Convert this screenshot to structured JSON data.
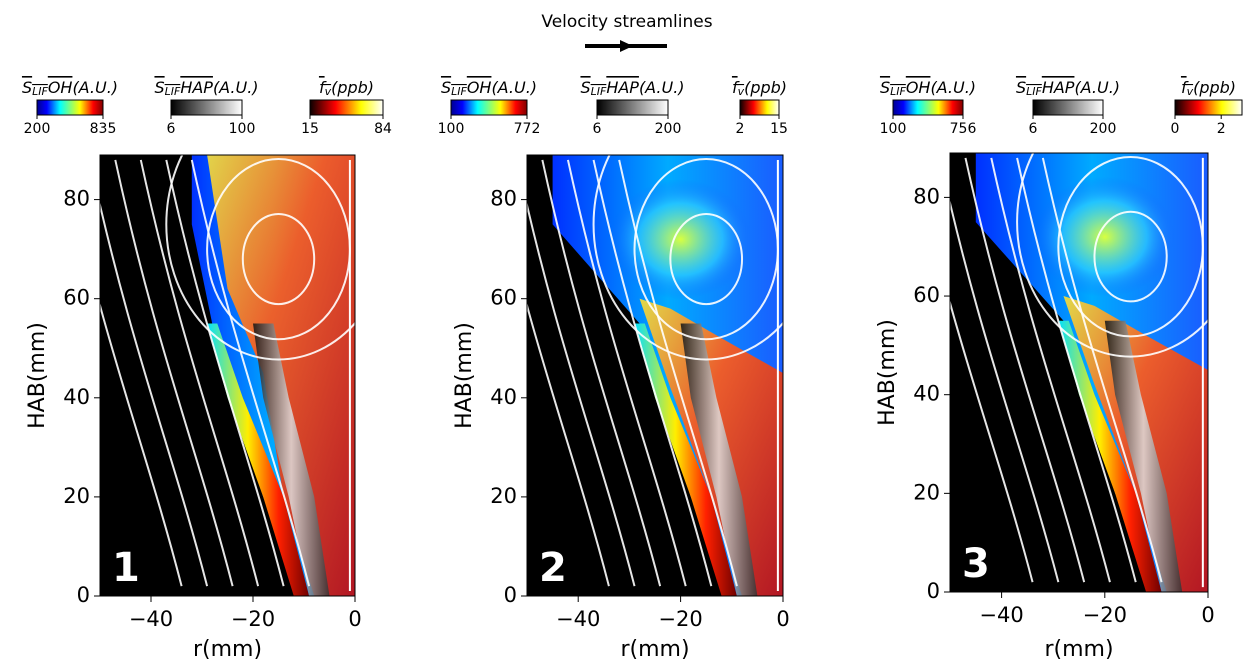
{
  "legend": {
    "label": "Velocity streamlines"
  },
  "chart_data": [
    {
      "type": "field",
      "panel_label": "1",
      "xlabel": "r(mm)",
      "ylabel": "HAB(mm)",
      "xlim": [
        -50,
        0
      ],
      "ylim": [
        0,
        89
      ],
      "xticks": [
        {
          "value": -40,
          "label": "−40"
        },
        {
          "value": -20,
          "label": "−20"
        },
        0
      ],
      "yticks": [
        0,
        20,
        40,
        60,
        80
      ],
      "colorbars": [
        {
          "label": {
            "main": "S",
            "sub": "LIF",
            "rest": "OH",
            "unit": "(A.U.)"
          },
          "cmap": "jet",
          "lim": [
            200,
            835
          ],
          "ticks": [
            200,
            835
          ]
        },
        {
          "label": {
            "main": "S",
            "sub": "LIF",
            "rest": "HAP",
            "unit": "(A.U.)"
          },
          "cmap": "gray",
          "lim": [
            6,
            100
          ],
          "ticks": [
            6,
            100
          ]
        },
        {
          "label": {
            "main": "f",
            "sub": "v",
            "unit": "(ppb)"
          },
          "cmap": "hot",
          "lim": [
            15,
            84
          ],
          "ticks": [
            15,
            84
          ]
        }
      ]
    },
    {
      "type": "field",
      "panel_label": "2",
      "xlabel": "r(mm)",
      "ylabel": "HAB(mm)",
      "xlim": [
        -50,
        0
      ],
      "ylim": [
        0,
        89
      ],
      "xticks": [
        {
          "value": -40,
          "label": "−40"
        },
        {
          "value": -20,
          "label": "−20"
        },
        0
      ],
      "yticks": [
        0,
        20,
        40,
        60,
        80
      ],
      "colorbars": [
        {
          "label": {
            "main": "S",
            "sub": "LIF",
            "rest": "OH",
            "unit": "(A.U.)"
          },
          "cmap": "jet",
          "lim": [
            100,
            772
          ],
          "ticks": [
            100,
            772
          ]
        },
        {
          "label": {
            "main": "S",
            "sub": "LIF",
            "rest": "HAP",
            "unit": "(A.U.)"
          },
          "cmap": "gray",
          "lim": [
            6,
            200
          ],
          "ticks": [
            6,
            200
          ]
        },
        {
          "label": {
            "main": "f",
            "sub": "v",
            "unit": "(ppb)"
          },
          "cmap": "hot",
          "lim": [
            2,
            15
          ],
          "ticks": [
            2,
            15
          ]
        }
      ]
    },
    {
      "type": "field",
      "panel_label": "3",
      "xlabel": "r(mm)",
      "ylabel": "HAB(mm)",
      "xlim": [
        -50,
        0
      ],
      "ylim": [
        0,
        89
      ],
      "xticks": [
        {
          "value": -40,
          "label": "−40"
        },
        {
          "value": -20,
          "label": "−20"
        },
        0
      ],
      "yticks": [
        0,
        20,
        40,
        60,
        80
      ],
      "colorbars": [
        {
          "label": {
            "main": "S",
            "sub": "LIF",
            "rest": "OH",
            "unit": "(A.U.)"
          },
          "cmap": "jet",
          "lim": [
            100,
            756
          ],
          "ticks": [
            100,
            756
          ]
        },
        {
          "label": {
            "main": "S",
            "sub": "LIF",
            "rest": "HAP",
            "unit": "(A.U.)"
          },
          "cmap": "gray",
          "lim": [
            6,
            200
          ],
          "ticks": [
            6,
            200
          ]
        },
        {
          "label": {
            "main": "f",
            "sub": "v",
            "unit": "(ppb)"
          },
          "cmap": "hot",
          "lim": [
            0,
            2.9
          ],
          "ticks": [
            0,
            2
          ]
        }
      ]
    }
  ]
}
